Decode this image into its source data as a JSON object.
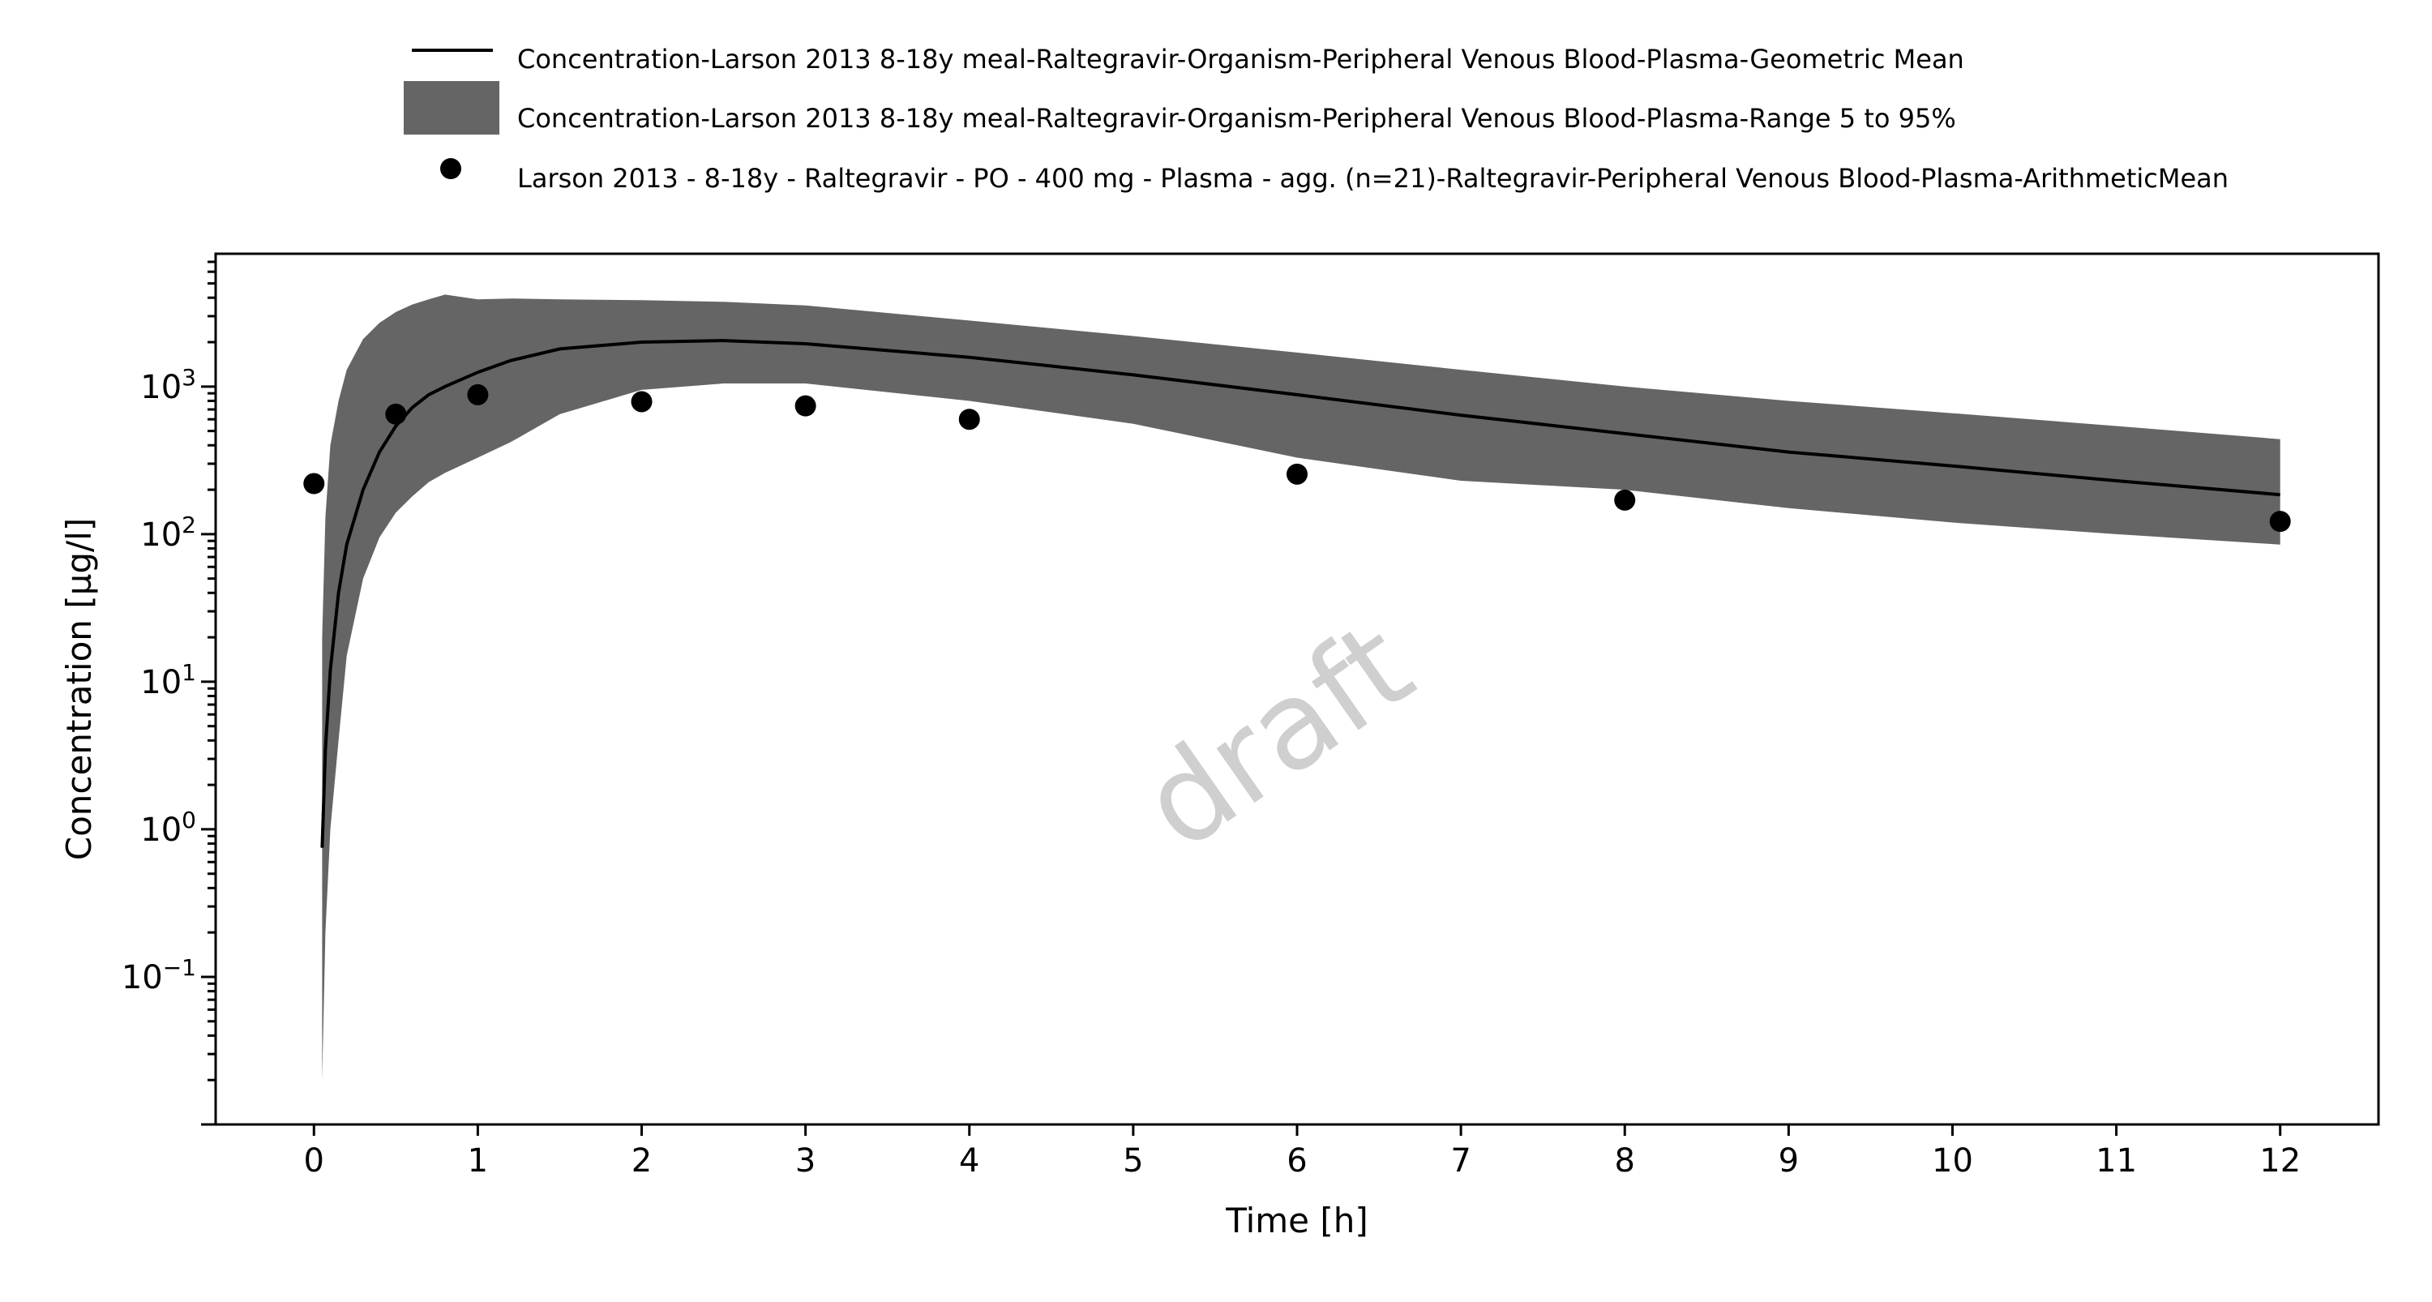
{
  "chart_data": {
    "type": "line",
    "title": "",
    "xlabel": "Time [h]",
    "ylabel": "Concentration [µg/l]",
    "xlim": [
      -0.6,
      12.6
    ],
    "ylim_log10": [
      -2.0,
      3.9
    ],
    "y_scale": "log",
    "x_ticks": [
      0,
      1,
      2,
      3,
      4,
      5,
      6,
      7,
      8,
      9,
      10,
      11,
      12
    ],
    "y_ticks": [
      {
        "exp": -1,
        "base": "10",
        "sup": "−1"
      },
      {
        "exp": 0,
        "base": "10",
        "sup": "0"
      },
      {
        "exp": 1,
        "base": "10",
        "sup": "1"
      },
      {
        "exp": 2,
        "base": "10",
        "sup": "2"
      },
      {
        "exp": 3,
        "base": "10",
        "sup": "3"
      }
    ],
    "watermark": "draft",
    "legend_position": "top",
    "legend": [
      {
        "type": "line",
        "label": "Concentration-Larson 2013 8-18y meal-Raltegravir-Organism-Peripheral Venous Blood-Plasma-Geometric Mean"
      },
      {
        "type": "band",
        "label": "Concentration-Larson 2013 8-18y meal-Raltegravir-Organism-Peripheral Venous Blood-Plasma-Range 5 to 95%"
      },
      {
        "type": "points",
        "label": "Larson 2013 - 8-18y - Raltegravir - PO - 400 mg - Plasma - agg. (n=21)-Raltegravir-Peripheral Venous Blood-Plasma-ArithmeticMean"
      }
    ],
    "series": [
      {
        "name": "Concentration-Larson 2013 8-18y meal-Raltegravir-Organism-Peripheral Venous Blood-Plasma-Geometric Mean",
        "kind": "line",
        "x": [
          0.05,
          0.07,
          0.1,
          0.15,
          0.2,
          0.3,
          0.4,
          0.5,
          0.6,
          0.7,
          0.8,
          1.0,
          1.2,
          1.5,
          2.0,
          2.5,
          3.0,
          4.0,
          5.0,
          6.0,
          7.0,
          8.0,
          9.0,
          10.0,
          11.0,
          12.0
        ],
        "y": [
          0.75,
          3.5,
          12,
          40,
          85,
          200,
          360,
          540,
          720,
          880,
          1000,
          1250,
          1500,
          1800,
          2000,
          2050,
          1950,
          1580,
          1200,
          880,
          640,
          480,
          360,
          290,
          230,
          185
        ]
      },
      {
        "name": "Concentration-Larson 2013 8-18y meal-Raltegravir-Organism-Peripheral Venous Blood-Plasma-Range 5 to 95%",
        "kind": "band",
        "x": [
          0.05,
          0.07,
          0.1,
          0.15,
          0.2,
          0.3,
          0.4,
          0.5,
          0.6,
          0.7,
          0.8,
          1.0,
          1.2,
          1.5,
          2.0,
          2.5,
          3.0,
          4.0,
          5.0,
          6.0,
          7.0,
          8.0,
          9.0,
          10.0,
          11.0,
          12.0
        ],
        "upper": [
          20,
          130,
          400,
          800,
          1300,
          2100,
          2700,
          3200,
          3600,
          3900,
          4200,
          3900,
          3950,
          3900,
          3850,
          3750,
          3550,
          2800,
          2200,
          1700,
          1300,
          1000,
          800,
          660,
          540,
          440
        ],
        "lower": [
          0.02,
          0.2,
          1.0,
          4.0,
          15,
          50,
          95,
          140,
          180,
          225,
          260,
          330,
          420,
          650,
          950,
          1050,
          1050,
          800,
          560,
          330,
          230,
          200,
          150,
          120,
          100,
          85
        ]
      },
      {
        "name": "Larson 2013 - 8-18y - Raltegravir - PO - 400 mg - Plasma - agg. (n=21)-Raltegravir-Peripheral Venous Blood-Plasma-ArithmeticMean",
        "kind": "scatter",
        "x": [
          0,
          0.5,
          1,
          2,
          3,
          4,
          6,
          8,
          12
        ],
        "y": [
          220,
          650,
          880,
          790,
          740,
          600,
          255,
          170,
          122
        ]
      }
    ]
  }
}
